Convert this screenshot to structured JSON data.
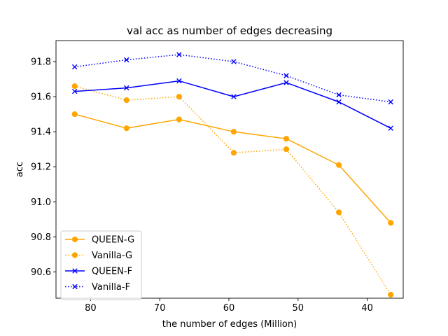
{
  "chart_data": {
    "type": "line",
    "title": "val acc as number of edges decreasing",
    "xlabel": "the number of edges (Million)",
    "ylabel": "acc",
    "x_inverted": true,
    "xlim": [
      85,
      34.8
    ],
    "ylim": [
      90.45,
      91.92
    ],
    "xticks": [
      80,
      70,
      60,
      50,
      40
    ],
    "yticks": [
      90.6,
      90.8,
      91.0,
      91.2,
      91.4,
      91.6,
      91.8
    ],
    "x": [
      82.3,
      74.8,
      67.2,
      59.3,
      51.7,
      44.1,
      36.6
    ],
    "legend_position": "lower-left",
    "grid": false,
    "series": [
      {
        "name": "QUEEN-G",
        "values": [
          91.5,
          91.42,
          91.47,
          91.4,
          91.36,
          91.21,
          90.88
        ],
        "color": "#ffa500",
        "line": "solid",
        "marker": "circle"
      },
      {
        "name": "Vanilla-G",
        "values": [
          91.66,
          91.58,
          91.6,
          91.28,
          91.3,
          90.94,
          90.47
        ],
        "color": "#ffa500",
        "line": "dotted",
        "marker": "circle"
      },
      {
        "name": "QUEEN-F",
        "values": [
          91.63,
          91.65,
          91.69,
          91.6,
          91.68,
          91.57,
          91.42
        ],
        "color": "#0000ff",
        "line": "solid",
        "marker": "x"
      },
      {
        "name": "Vanilla-F",
        "values": [
          91.77,
          91.81,
          91.84,
          91.8,
          91.72,
          91.61,
          91.57
        ],
        "color": "#0000ff",
        "line": "dotted",
        "marker": "x"
      }
    ]
  }
}
